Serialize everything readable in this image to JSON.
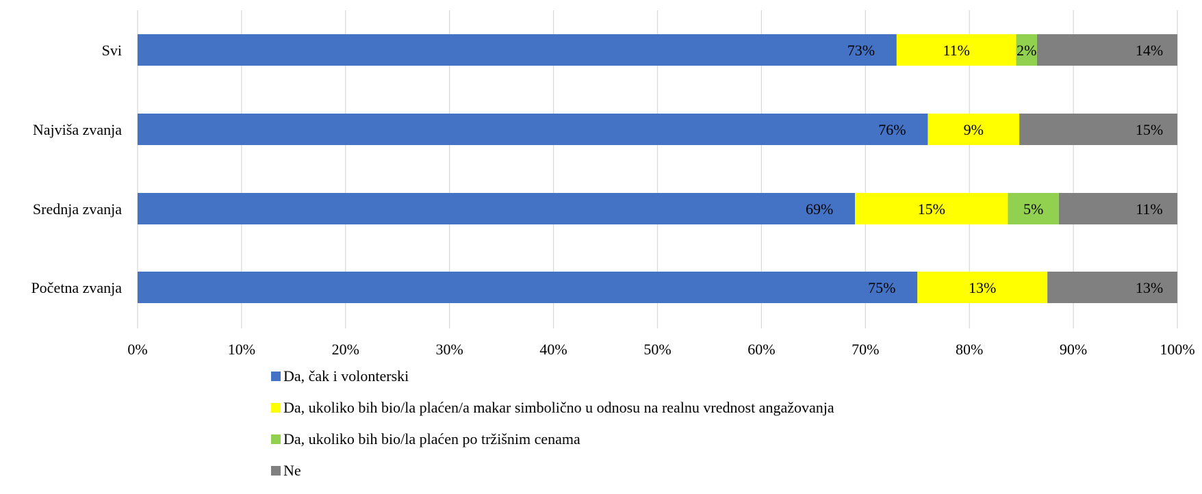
{
  "chart_data": {
    "type": "bar",
    "orientation": "horizontal",
    "stacked": "percent",
    "categories": [
      "Svi",
      "Najviša zvanja",
      "Srednja zvanja",
      "Početna zvanja"
    ],
    "series": [
      {
        "name": "Da, čak i volonterski",
        "color": "#4472C4",
        "values": [
          73,
          76,
          69,
          75
        ],
        "labels": [
          "73%",
          "76%",
          "69%",
          "75%"
        ]
      },
      {
        "name": "Da, ukoliko bih bio/la plaćen/a makar simbolično u odnosu na realnu vrednost angažovanja",
        "color": "#FFFF00",
        "values": [
          11.5,
          8.8,
          14.7,
          12.5
        ],
        "labels": [
          "11%",
          "9%",
          "15%",
          "13%"
        ]
      },
      {
        "name": "Da, ukoliko bih bio/la plaćen po tržišnim cenama",
        "color": "#92D050",
        "values": [
          2,
          0,
          4.9,
          0
        ],
        "labels": [
          "2%",
          "",
          "5%",
          ""
        ]
      },
      {
        "name": "Ne",
        "color": "#808080",
        "values": [
          13.5,
          15.2,
          11.4,
          12.5
        ],
        "labels": [
          "14%",
          "15%",
          "11%",
          "13%"
        ]
      }
    ],
    "x_ticks": [
      "0%",
      "10%",
      "20%",
      "30%",
      "40%",
      "50%",
      "60%",
      "70%",
      "80%",
      "90%",
      "100%"
    ],
    "xlim": [
      0,
      100
    ],
    "grid": "vertical",
    "legend_position": "bottom"
  }
}
